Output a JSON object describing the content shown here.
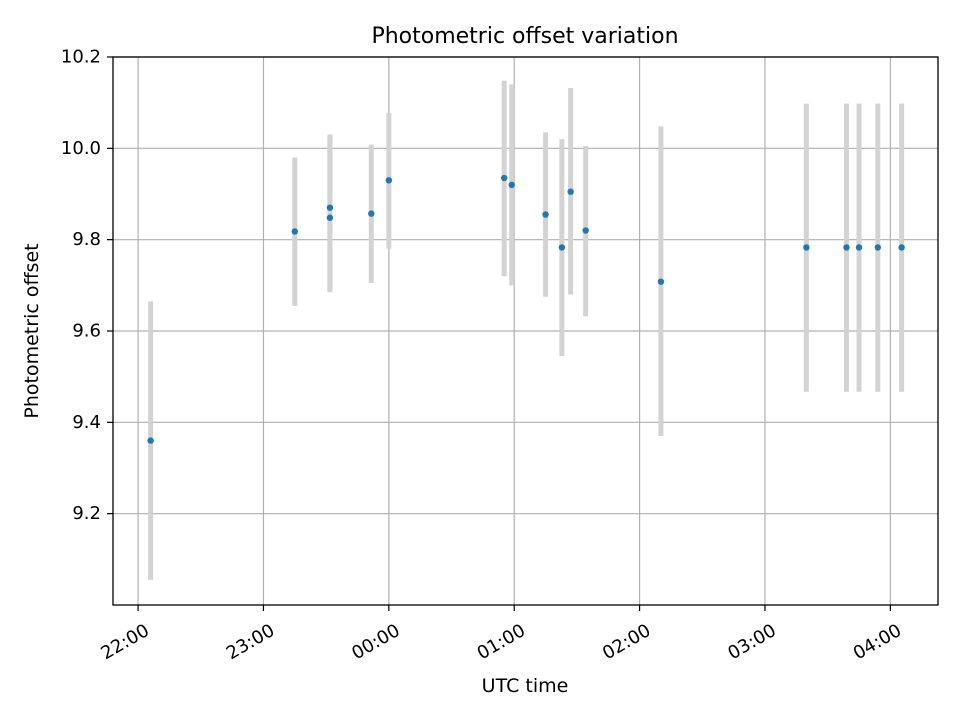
{
  "chart_data": {
    "type": "scatter",
    "title": "Photometric offset variation",
    "xlabel": "UTC time",
    "ylabel": "Photometric offset",
    "x_unit": "hours",
    "xlim": [
      21.8,
      28.38
    ],
    "ylim": [
      9.0,
      10.2
    ],
    "grid": true,
    "x_ticks": [
      {
        "value": 22,
        "label": "22:00"
      },
      {
        "value": 23,
        "label": "23:00"
      },
      {
        "value": 24,
        "label": "00:00"
      },
      {
        "value": 25,
        "label": "01:00"
      },
      {
        "value": 26,
        "label": "02:00"
      },
      {
        "value": 27,
        "label": "03:00"
      },
      {
        "value": 28,
        "label": "04:00"
      }
    ],
    "y_ticks": [
      {
        "value": 9.2,
        "label": "9.2"
      },
      {
        "value": 9.4,
        "label": "9.4"
      },
      {
        "value": 9.6,
        "label": "9.6"
      },
      {
        "value": 9.8,
        "label": "9.8"
      },
      {
        "value": 10.0,
        "label": "10.0"
      },
      {
        "value": 10.2,
        "label": "10.2"
      }
    ],
    "points": [
      {
        "x": 22.1,
        "y": 9.36,
        "low": 9.055,
        "high": 9.665
      },
      {
        "x": 23.25,
        "y": 9.818,
        "low": 9.655,
        "high": 9.98
      },
      {
        "x": 23.53,
        "y": 9.848,
        "low": 9.685,
        "high": 10.03
      },
      {
        "x": 23.53,
        "y": 9.87,
        "low": 9.685,
        "high": 10.03
      },
      {
        "x": 23.86,
        "y": 9.857,
        "low": 9.705,
        "high": 10.008
      },
      {
        "x": 24.0,
        "y": 9.93,
        "low": 9.78,
        "high": 10.078
      },
      {
        "x": 24.92,
        "y": 9.935,
        "low": 9.72,
        "high": 10.148
      },
      {
        "x": 24.98,
        "y": 9.92,
        "low": 9.7,
        "high": 10.14
      },
      {
        "x": 25.25,
        "y": 9.855,
        "low": 9.675,
        "high": 10.035
      },
      {
        "x": 25.38,
        "y": 9.783,
        "low": 9.545,
        "high": 10.02
      },
      {
        "x": 25.45,
        "y": 9.905,
        "low": 9.68,
        "high": 10.132
      },
      {
        "x": 25.57,
        "y": 9.82,
        "low": 9.632,
        "high": 10.005
      },
      {
        "x": 26.17,
        "y": 9.708,
        "low": 9.37,
        "high": 10.048
      },
      {
        "x": 27.33,
        "y": 9.783,
        "low": 9.467,
        "high": 10.098
      },
      {
        "x": 27.65,
        "y": 9.783,
        "low": 9.467,
        "high": 10.098
      },
      {
        "x": 27.75,
        "y": 9.783,
        "low": 9.467,
        "high": 10.098
      },
      {
        "x": 27.9,
        "y": 9.783,
        "low": 9.467,
        "high": 10.098
      },
      {
        "x": 28.09,
        "y": 9.783,
        "low": 9.467,
        "high": 10.098
      }
    ],
    "colors": {
      "point": "#1f77b4",
      "errorbar": "#d3d3d3",
      "grid": "#b0b0b0",
      "axis": "#000000"
    }
  }
}
